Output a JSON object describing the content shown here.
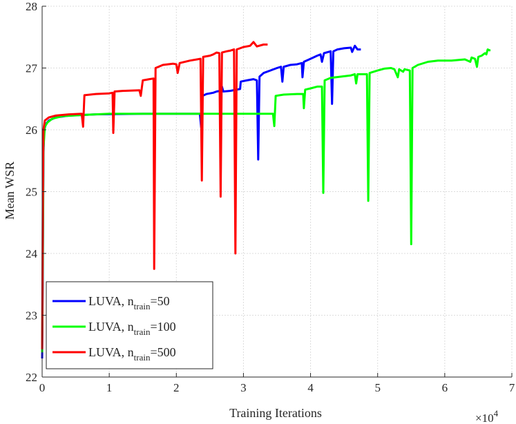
{
  "chart_data": {
    "type": "line",
    "title": "",
    "xlabel": "Training Iterations",
    "ylabel": "Mean WSR",
    "x_multiplier_label": "×10",
    "x_multiplier_exponent": "4",
    "xlim": [
      0,
      7
    ],
    "ylim": [
      22,
      28
    ],
    "xticks": [
      "0",
      "1",
      "2",
      "3",
      "4",
      "5",
      "6",
      "7"
    ],
    "yticks": [
      "22",
      "23",
      "24",
      "25",
      "26",
      "27",
      "28"
    ],
    "grid": true,
    "legend_position": "bottom-left",
    "series": [
      {
        "name": "LUVA, n_train=50",
        "legend_main": "LUVA, n",
        "legend_sub": "train",
        "legend_tail": "=50",
        "color": "#0000ff",
        "points": [
          [
            0.0,
            22.3
          ],
          [
            0.01,
            23.6
          ],
          [
            0.02,
            25.6
          ],
          [
            0.03,
            26.0
          ],
          [
            0.06,
            26.1
          ],
          [
            0.1,
            26.15
          ],
          [
            0.2,
            26.2
          ],
          [
            0.4,
            26.23
          ],
          [
            0.8,
            26.25
          ],
          [
            1.5,
            26.26
          ],
          [
            2.35,
            26.26
          ],
          [
            2.37,
            26.04
          ],
          [
            2.39,
            26.55
          ],
          [
            2.45,
            26.58
          ],
          [
            2.55,
            26.6
          ],
          [
            2.6,
            26.62
          ],
          [
            2.65,
            26.63
          ],
          [
            2.68,
            26.7
          ],
          [
            2.7,
            26.62
          ],
          [
            2.8,
            26.63
          ],
          [
            2.9,
            26.65
          ],
          [
            2.95,
            26.66
          ],
          [
            2.96,
            26.78
          ],
          [
            3.05,
            26.8
          ],
          [
            3.15,
            26.82
          ],
          [
            3.2,
            26.8
          ],
          [
            3.22,
            25.52
          ],
          [
            3.24,
            26.86
          ],
          [
            3.3,
            26.92
          ],
          [
            3.4,
            26.96
          ],
          [
            3.5,
            27.0
          ],
          [
            3.56,
            27.02
          ],
          [
            3.58,
            26.78
          ],
          [
            3.6,
            27.02
          ],
          [
            3.7,
            27.05
          ],
          [
            3.8,
            27.06
          ],
          [
            3.87,
            27.08
          ],
          [
            3.88,
            26.85
          ],
          [
            3.9,
            27.1
          ],
          [
            4.0,
            27.15
          ],
          [
            4.1,
            27.2
          ],
          [
            4.15,
            27.22
          ],
          [
            4.17,
            27.1
          ],
          [
            4.2,
            27.24
          ],
          [
            4.3,
            27.27
          ],
          [
            4.32,
            26.42
          ],
          [
            4.34,
            27.27
          ],
          [
            4.4,
            27.3
          ],
          [
            4.5,
            27.32
          ],
          [
            4.6,
            27.33
          ],
          [
            4.62,
            27.26
          ],
          [
            4.66,
            27.36
          ],
          [
            4.7,
            27.3
          ],
          [
            4.75,
            27.3
          ]
        ]
      },
      {
        "name": "LUVA, n_train=100",
        "legend_main": "LUVA, n",
        "legend_sub": "train",
        "legend_tail": "=100",
        "color": "#00ff00",
        "points": [
          [
            0.0,
            22.4
          ],
          [
            0.01,
            24.0
          ],
          [
            0.02,
            25.7
          ],
          [
            0.04,
            26.05
          ],
          [
            0.08,
            26.12
          ],
          [
            0.15,
            26.18
          ],
          [
            0.3,
            26.22
          ],
          [
            0.6,
            26.24
          ],
          [
            1.0,
            26.26
          ],
          [
            2.0,
            26.26
          ],
          [
            3.44,
            26.26
          ],
          [
            3.46,
            26.06
          ],
          [
            3.48,
            26.55
          ],
          [
            3.6,
            26.57
          ],
          [
            3.8,
            26.58
          ],
          [
            3.89,
            26.58
          ],
          [
            3.9,
            26.35
          ],
          [
            3.92,
            26.65
          ],
          [
            4.0,
            26.67
          ],
          [
            4.1,
            26.7
          ],
          [
            4.17,
            26.7
          ],
          [
            4.19,
            24.98
          ],
          [
            4.21,
            26.8
          ],
          [
            4.3,
            26.84
          ],
          [
            4.45,
            26.86
          ],
          [
            4.6,
            26.88
          ],
          [
            4.66,
            26.9
          ],
          [
            4.68,
            26.75
          ],
          [
            4.7,
            26.9
          ],
          [
            4.84,
            26.9
          ],
          [
            4.86,
            24.85
          ],
          [
            4.88,
            26.92
          ],
          [
            5.0,
            26.96
          ],
          [
            5.1,
            26.99
          ],
          [
            5.2,
            27.0
          ],
          [
            5.25,
            26.98
          ],
          [
            5.3,
            26.85
          ],
          [
            5.32,
            26.98
          ],
          [
            5.38,
            26.94
          ],
          [
            5.4,
            26.98
          ],
          [
            5.48,
            26.96
          ],
          [
            5.5,
            24.15
          ],
          [
            5.52,
            27.0
          ],
          [
            5.6,
            27.05
          ],
          [
            5.75,
            27.1
          ],
          [
            5.9,
            27.12
          ],
          [
            6.1,
            27.12
          ],
          [
            6.3,
            27.14
          ],
          [
            6.38,
            27.1
          ],
          [
            6.4,
            27.17
          ],
          [
            6.45,
            27.15
          ],
          [
            6.48,
            27.02
          ],
          [
            6.5,
            27.18
          ],
          [
            6.55,
            27.2
          ],
          [
            6.6,
            27.24
          ],
          [
            6.62,
            27.22
          ],
          [
            6.64,
            27.3
          ],
          [
            6.68,
            27.28
          ]
        ]
      },
      {
        "name": "LUVA, n_train=500",
        "legend_main": "LUVA, n",
        "legend_sub": "train",
        "legend_tail": "=500",
        "color": "#ff0000",
        "points": [
          [
            0.0,
            22.45
          ],
          [
            0.01,
            24.8
          ],
          [
            0.02,
            26.0
          ],
          [
            0.04,
            26.15
          ],
          [
            0.1,
            26.2
          ],
          [
            0.2,
            26.23
          ],
          [
            0.4,
            26.25
          ],
          [
            0.59,
            26.26
          ],
          [
            0.61,
            26.05
          ],
          [
            0.63,
            26.56
          ],
          [
            0.8,
            26.58
          ],
          [
            1.0,
            26.59
          ],
          [
            1.05,
            26.6
          ],
          [
            1.06,
            25.95
          ],
          [
            1.08,
            26.62
          ],
          [
            1.2,
            26.63
          ],
          [
            1.45,
            26.64
          ],
          [
            1.47,
            26.55
          ],
          [
            1.5,
            26.8
          ],
          [
            1.6,
            26.82
          ],
          [
            1.66,
            26.83
          ],
          [
            1.67,
            23.75
          ],
          [
            1.69,
            27.0
          ],
          [
            1.8,
            27.05
          ],
          [
            1.95,
            27.07
          ],
          [
            2.0,
            27.06
          ],
          [
            2.02,
            26.92
          ],
          [
            2.05,
            27.08
          ],
          [
            2.2,
            27.12
          ],
          [
            2.36,
            27.15
          ],
          [
            2.38,
            25.18
          ],
          [
            2.4,
            27.18
          ],
          [
            2.5,
            27.2
          ],
          [
            2.55,
            27.22
          ],
          [
            2.6,
            27.25
          ],
          [
            2.64,
            27.24
          ],
          [
            2.66,
            24.92
          ],
          [
            2.68,
            27.25
          ],
          [
            2.75,
            27.27
          ],
          [
            2.8,
            27.28
          ],
          [
            2.86,
            27.3
          ],
          [
            2.88,
            24.0
          ],
          [
            2.9,
            27.3
          ],
          [
            3.0,
            27.34
          ],
          [
            3.1,
            27.36
          ],
          [
            3.15,
            27.42
          ],
          [
            3.2,
            27.35
          ],
          [
            3.3,
            27.38
          ],
          [
            3.36,
            27.38
          ]
        ]
      }
    ]
  }
}
